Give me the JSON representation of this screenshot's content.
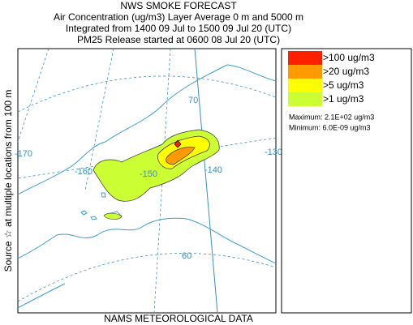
{
  "header": {
    "title": "NWS SMOKE FORECAST",
    "lines": [
      "Air Concentration (ug/m3) Layer Average     0 m and  5000 m",
      "Integrated from 1400 09 Jul to 1500 09 Jul 20 (UTC)",
      "PM25 Release started at 0600 08 Jul 20 (UTC)"
    ]
  },
  "side_label": "Source ☆  at multiple locations   from   100 m",
  "footer": "NAMS METEOROLOGICAL DATA",
  "legend": {
    "items": [
      {
        "label": ">100 ug/m3",
        "color": "#ff2000"
      },
      {
        "label": ">20 ug/m3",
        "color": "#ff9a00"
      },
      {
        "label": ">5 ug/m3",
        "color": "#ffff00"
      },
      {
        "label": ">1 ug/m3",
        "color": "#ccff33"
      }
    ],
    "maximum": "Maximum: 2.1E+02 ug/m3",
    "minimum": "Minimum: 6.0E-09 ug/m3"
  },
  "map": {
    "graticule_labels": [
      "-170",
      "-160",
      "-150",
      "-140",
      "-130",
      "70",
      "60"
    ]
  }
}
